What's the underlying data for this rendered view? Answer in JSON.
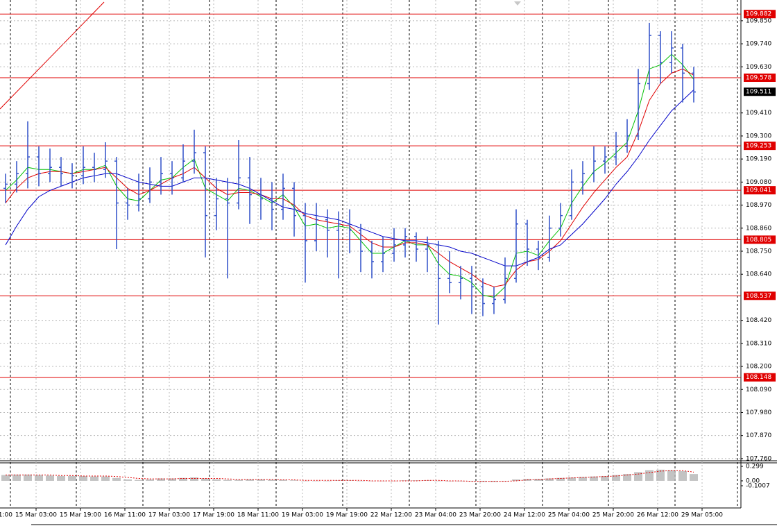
{
  "chart_data": {
    "type": "ohlc",
    "ylim": [
      107.753,
      109.949
    ],
    "yticks": [
      {
        "value": 109.85,
        "label": "109.850"
      },
      {
        "value": 109.74,
        "label": "109.740"
      },
      {
        "value": 109.63,
        "label": "109.630"
      },
      {
        "value": 109.41,
        "label": "109.410"
      },
      {
        "value": 109.3,
        "label": "109.300"
      },
      {
        "value": 109.19,
        "label": "109.190"
      },
      {
        "value": 109.08,
        "label": "109.080"
      },
      {
        "value": 108.97,
        "label": "108.970"
      },
      {
        "value": 108.86,
        "label": "108.860"
      },
      {
        "value": 108.75,
        "label": "108.750"
      },
      {
        "value": 108.64,
        "label": "108.640"
      },
      {
        "value": 108.42,
        "label": "108.420"
      },
      {
        "value": 108.31,
        "label": "108.310"
      },
      {
        "value": 108.2,
        "label": "108.200"
      },
      {
        "value": 108.09,
        "label": "108.090"
      },
      {
        "value": 107.98,
        "label": "107.980"
      },
      {
        "value": 107.87,
        "label": "107.870"
      },
      {
        "value": 107.76,
        "label": "107.760"
      }
    ],
    "xticks": [
      {
        "value": -1.25,
        "label": "1:00"
      },
      {
        "value": 2.75,
        "label": "15 Mar 03:00"
      },
      {
        "value": 6.75,
        "label": "15 Mar 19:00"
      },
      {
        "value": 10.75,
        "label": "16 Mar 11:00"
      },
      {
        "value": 14.75,
        "label": "17 Mar 03:00"
      },
      {
        "value": 18.75,
        "label": "17 Mar 19:00"
      },
      {
        "value": 22.75,
        "label": "18 Mar 11:00"
      },
      {
        "value": 26.75,
        "label": "19 Mar 03:00"
      },
      {
        "value": 30.75,
        "label": "19 Mar 19:00"
      },
      {
        "value": 34.75,
        "label": "22 Mar 12:00"
      },
      {
        "value": 38.75,
        "label": "23 Mar 04:00"
      },
      {
        "value": 42.75,
        "label": "23 Mar 20:00"
      },
      {
        "value": 46.75,
        "label": "24 Mar 12:00"
      },
      {
        "value": 50.75,
        "label": "25 Mar 04:00"
      },
      {
        "value": 54.75,
        "label": "25 Mar 20:00"
      },
      {
        "value": 58.75,
        "label": "26 Mar 12:00"
      },
      {
        "value": 62.75,
        "label": "29 Mar 05:00"
      }
    ],
    "color": "#2f4fc8",
    "grid": true,
    "open": [
      109.05,
      109.07,
      109.12,
      109.2,
      109.12,
      109.15,
      109.12,
      109.11,
      109.15,
      109.14,
      109.18,
      108.98,
      108.97,
      109.0,
      109.08,
      109.12,
      109.1,
      109.18,
      109.22,
      108.92,
      109.0,
      108.98,
      109.1,
      109.02,
      109.0,
      108.95,
      109.05,
      108.92,
      108.8,
      108.9,
      108.85,
      108.88,
      108.85,
      108.75,
      108.7,
      108.74,
      108.78,
      108.82,
      108.76,
      108.78,
      108.62,
      108.6,
      108.62,
      108.58,
      108.5,
      108.52,
      108.62,
      108.88,
      108.76,
      108.72,
      108.86,
      108.92,
      109.08,
      109.12,
      109.18,
      109.2,
      109.25,
      109.3,
      109.55,
      109.78,
      109.65,
      109.72,
      109.6
    ],
    "high": [
      109.12,
      109.18,
      109.37,
      109.25,
      109.24,
      109.2,
      109.17,
      109.25,
      109.22,
      109.27,
      109.2,
      109.05,
      109.12,
      109.15,
      109.2,
      109.18,
      109.26,
      109.33,
      109.25,
      109.1,
      109.1,
      109.28,
      109.2,
      109.1,
      109.08,
      109.12,
      109.08,
      108.98,
      108.98,
      108.95,
      108.94,
      108.95,
      108.88,
      108.8,
      108.82,
      108.86,
      108.86,
      108.84,
      108.82,
      108.8,
      108.75,
      108.68,
      108.68,
      108.62,
      108.58,
      108.72,
      108.95,
      108.9,
      108.8,
      108.92,
      108.98,
      109.14,
      109.18,
      109.25,
      109.25,
      109.32,
      109.38,
      109.62,
      109.84,
      109.8,
      109.8,
      109.74,
      109.63
    ],
    "low": [
      108.98,
      109.03,
      109.05,
      109.06,
      109.08,
      109.06,
      109.05,
      109.07,
      109.08,
      109.1,
      108.76,
      108.9,
      108.94,
      108.98,
      109.02,
      109.02,
      109.08,
      109.12,
      108.72,
      108.85,
      108.62,
      108.95,
      108.88,
      108.9,
      108.85,
      108.9,
      108.82,
      108.6,
      108.75,
      108.72,
      108.62,
      108.74,
      108.65,
      108.62,
      108.65,
      108.7,
      108.72,
      108.7,
      108.65,
      108.4,
      108.55,
      108.52,
      108.45,
      108.44,
      108.45,
      108.5,
      108.6,
      108.68,
      108.66,
      108.7,
      108.82,
      108.9,
      109.02,
      109.08,
      109.12,
      109.16,
      109.22,
      109.28,
      109.52,
      109.55,
      109.6,
      109.46,
      109.46
    ],
    "close": [
      109.07,
      109.12,
      109.2,
      109.12,
      109.15,
      109.12,
      109.11,
      109.15,
      109.14,
      109.18,
      108.98,
      108.97,
      109.0,
      109.08,
      109.12,
      109.1,
      109.18,
      109.22,
      108.92,
      109.0,
      108.98,
      109.1,
      109.02,
      109.0,
      108.95,
      109.05,
      108.92,
      108.8,
      108.9,
      108.85,
      108.88,
      108.85,
      108.75,
      108.7,
      108.74,
      108.78,
      108.82,
      108.76,
      108.78,
      108.62,
      108.6,
      108.62,
      108.58,
      108.5,
      108.52,
      108.62,
      108.88,
      108.76,
      108.72,
      108.86,
      108.92,
      109.08,
      109.12,
      109.18,
      109.2,
      109.25,
      109.3,
      109.55,
      109.78,
      109.65,
      109.72,
      109.6,
      109.51
    ],
    "series": [
      {
        "color": "#00c000",
        "values": [
          109.04,
          109.09,
          109.15,
          109.14,
          109.14,
          109.13,
          109.12,
          109.14,
          109.14,
          109.16,
          109.06,
          109.0,
          108.99,
          109.04,
          109.09,
          109.1,
          109.15,
          109.19,
          109.05,
          109.02,
          108.99,
          109.05,
          109.04,
          109.01,
          108.98,
          109.02,
          108.96,
          108.87,
          108.88,
          108.86,
          108.87,
          108.86,
          108.8,
          108.74,
          108.74,
          108.77,
          108.8,
          108.78,
          108.78,
          108.69,
          108.64,
          108.63,
          108.6,
          108.54,
          108.53,
          108.58,
          108.74,
          108.75,
          108.73,
          108.8,
          108.86,
          108.98,
          109.06,
          109.13,
          109.17,
          109.22,
          109.27,
          109.42,
          109.62,
          109.64,
          109.69,
          109.64,
          109.57
        ]
      },
      {
        "color": "#e00000",
        "values": [
          108.98,
          109.05,
          109.1,
          109.12,
          109.13,
          109.13,
          109.12,
          109.13,
          109.14,
          109.15,
          109.1,
          109.05,
          109.02,
          109.04,
          109.07,
          109.1,
          109.12,
          109.15,
          109.1,
          109.05,
          109.02,
          109.03,
          109.03,
          109.02,
          109.0,
          109.0,
          108.97,
          108.92,
          108.9,
          108.89,
          108.88,
          108.87,
          108.83,
          108.79,
          108.77,
          108.77,
          108.79,
          108.79,
          108.78,
          108.74,
          108.7,
          108.67,
          108.64,
          108.6,
          108.58,
          108.59,
          108.66,
          108.7,
          108.71,
          108.75,
          108.8,
          108.88,
          108.96,
          109.03,
          109.09,
          109.15,
          109.2,
          109.32,
          109.47,
          109.55,
          109.6,
          109.62,
          109.59
        ]
      },
      {
        "color": "#0000c8",
        "values": [
          108.78,
          108.87,
          108.95,
          109.01,
          109.04,
          109.06,
          109.08,
          109.1,
          109.11,
          109.12,
          109.12,
          109.1,
          109.08,
          109.07,
          109.06,
          109.06,
          109.08,
          109.1,
          109.1,
          109.09,
          109.08,
          109.07,
          109.05,
          109.02,
          108.99,
          108.96,
          108.95,
          108.93,
          108.92,
          108.91,
          108.9,
          108.88,
          108.86,
          108.84,
          108.82,
          108.81,
          108.8,
          108.8,
          108.79,
          108.78,
          108.77,
          108.75,
          108.74,
          108.72,
          108.7,
          108.68,
          108.68,
          108.7,
          108.72,
          108.76,
          108.78,
          108.83,
          108.88,
          108.94,
          109.0,
          109.07,
          109.13,
          109.2,
          109.28,
          109.35,
          109.42,
          109.47,
          109.52
        ]
      }
    ],
    "levels": [
      109.882,
      109.578,
      109.253,
      109.041,
      108.805,
      108.537,
      108.148
    ],
    "level_color": "#e00000",
    "current_price": 109.511,
    "indicator": {
      "ylim": [
        -0.1007,
        0.299
      ],
      "yticks": [
        0.299,
        {
          "value": 0,
          "label": "0.00"
        },
        -0.1007
      ],
      "histogram": {
        "color": "#b4b4b4",
        "values": [
          0.12,
          0.13,
          0.13,
          0.12,
          0.11,
          0.1,
          0.1,
          0.1,
          0.09,
          0.09,
          0.06,
          0.03,
          0.02,
          0.03,
          0.05,
          0.05,
          0.06,
          0.07,
          0.05,
          0.03,
          0.02,
          0.02,
          0.03,
          0.03,
          0.02,
          0.02,
          0.01,
          0.0,
          0.0,
          0.0,
          0.01,
          0.01,
          0.0,
          0.0,
          0.0,
          0.0,
          0.01,
          0.01,
          0.01,
          0.0,
          -0.01,
          -0.01,
          -0.01,
          -0.02,
          -0.02,
          -0.01,
          0.03,
          0.04,
          0.04,
          0.05,
          0.06,
          0.07,
          0.08,
          0.09,
          0.1,
          0.12,
          0.14,
          0.18,
          0.22,
          0.23,
          0.22,
          0.2,
          0.14
        ]
      },
      "signal": {
        "color": "#e00000",
        "values": [
          0.12,
          0.12,
          0.12,
          0.12,
          0.12,
          0.11,
          0.11,
          0.1,
          0.1,
          0.1,
          0.09,
          0.07,
          0.05,
          0.04,
          0.04,
          0.04,
          0.05,
          0.05,
          0.05,
          0.05,
          0.04,
          0.03,
          0.03,
          0.03,
          0.03,
          0.02,
          0.02,
          0.01,
          0.01,
          0.01,
          0.01,
          0.01,
          0.01,
          0.0,
          0.0,
          0.0,
          0.0,
          0.0,
          0.01,
          0.01,
          0.0,
          0.0,
          -0.01,
          -0.01,
          -0.01,
          -0.01,
          0.0,
          0.02,
          0.03,
          0.04,
          0.05,
          0.06,
          0.07,
          0.08,
          0.09,
          0.1,
          0.12,
          0.14,
          0.17,
          0.2,
          0.21,
          0.21,
          0.18
        ]
      }
    }
  }
}
